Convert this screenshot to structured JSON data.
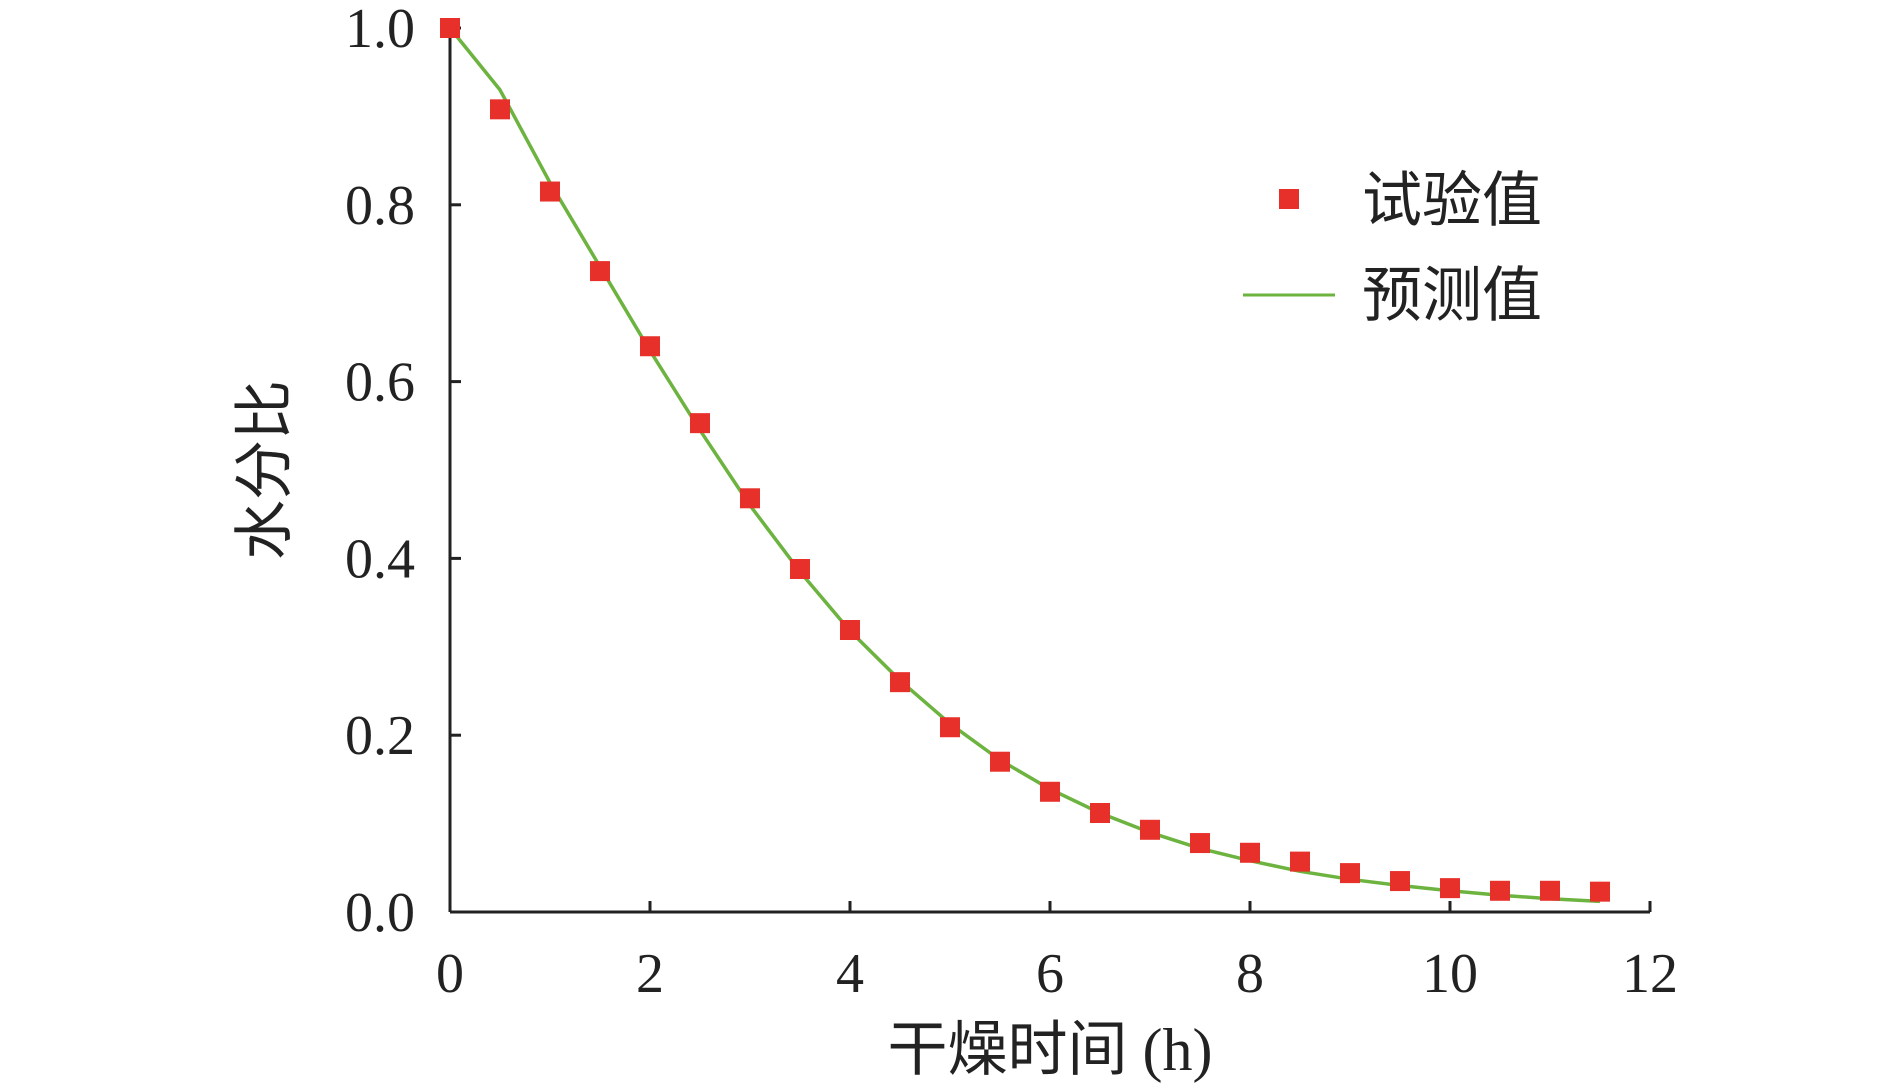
{
  "chart_data": {
    "type": "scatter",
    "xlabel": "干燥时间 (h)",
    "ylabel": "水分比",
    "xlim": [
      0,
      12
    ],
    "ylim": [
      0,
      1.0
    ],
    "x_ticks": [
      "0",
      "2",
      "4",
      "6",
      "8",
      "10",
      "12"
    ],
    "y_ticks": [
      "0.0",
      "0.2",
      "0.4",
      "0.6",
      "0.8",
      "1.0"
    ],
    "grid": false,
    "legend_position": "top-right",
    "series": [
      {
        "name": "试验值",
        "kind": "scatter",
        "marker": "square",
        "color": "#e8302a",
        "x": [
          0,
          0.5,
          1,
          1.5,
          2,
          2.5,
          3,
          3.5,
          4,
          4.5,
          5,
          5.5,
          6,
          6.5,
          7,
          7.5,
          8,
          8.5,
          9,
          9.5,
          10,
          10.5,
          11,
          11.5
        ],
        "y": [
          1.0,
          0.908,
          0.815,
          0.725,
          0.64,
          0.553,
          0.468,
          0.388,
          0.319,
          0.26,
          0.209,
          0.17,
          0.136,
          0.112,
          0.093,
          0.078,
          0.067,
          0.057,
          0.044,
          0.035,
          0.027,
          0.024,
          0.024,
          0.023
        ]
      },
      {
        "name": "预测值",
        "kind": "line",
        "color": "#6cb33f",
        "x": [
          0,
          0.5,
          1,
          1.5,
          2,
          2.5,
          3,
          3.5,
          4,
          4.5,
          5,
          5.5,
          6,
          6.5,
          7,
          7.5,
          8,
          8.5,
          9,
          9.5,
          10,
          10.5,
          11,
          11.5
        ],
        "y": [
          1.0,
          0.93,
          0.825,
          0.73,
          0.635,
          0.545,
          0.46,
          0.385,
          0.318,
          0.262,
          0.213,
          0.172,
          0.139,
          0.112,
          0.09,
          0.072,
          0.058,
          0.046,
          0.037,
          0.03,
          0.024,
          0.019,
          0.015,
          0.012
        ]
      }
    ]
  }
}
